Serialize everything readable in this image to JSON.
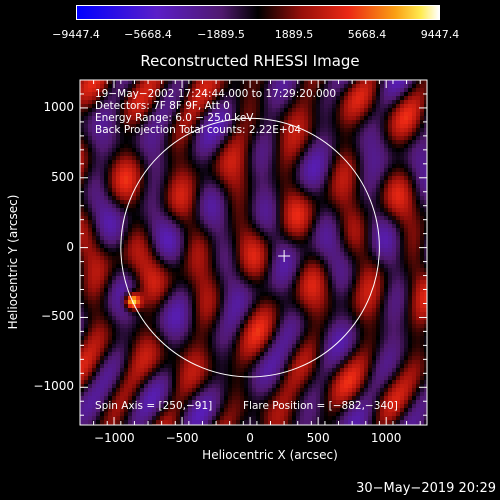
{
  "colorbar": {
    "ticks": [
      "−9447.4",
      "−5668.4",
      "−1889.5",
      "1889.5",
      "5668.4",
      "9447.4"
    ]
  },
  "chart_data": {
    "type": "heatmap",
    "title": "Reconstructed RHESSI Image",
    "xlabel": "Heliocentric X (arcsec)",
    "ylabel": "Heliocentric Y (arcsec)",
    "xlim": [
      -1250,
      1300
    ],
    "ylim": [
      -1270,
      1200
    ],
    "xticks": [
      {
        "value": -1000,
        "label": "−1000"
      },
      {
        "value": -500,
        "label": "−500"
      },
      {
        "value": 0,
        "label": "0"
      },
      {
        "value": 500,
        "label": "500"
      },
      {
        "value": 1000,
        "label": "1000"
      }
    ],
    "yticks": [
      {
        "value": 1000,
        "label": "1000"
      },
      {
        "value": 500,
        "label": "500"
      },
      {
        "value": 0,
        "label": "0"
      },
      {
        "value": -500,
        "label": "−500"
      },
      {
        "value": -1000,
        "label": "−1000"
      }
    ],
    "color_range": [
      -9447.4,
      9447.4
    ],
    "solar_limb": {
      "center": [
        0,
        0
      ],
      "radius": 950
    },
    "center_marker": [
      250,
      -60
    ],
    "hotspot": {
      "x": -880,
      "y": -370
    },
    "info_lines": [
      "19−May−2002 17:24:44.000 to 17:29:20.000",
      "Detectors: 7F 8F 9F, Att 0",
      "Energy Range: 6.0 − 25.0 keV",
      "Back Projection     Total counts: 2.22E+04"
    ],
    "spin_axis": "Spin Axis = [250,−91]",
    "flare_position": "Flare Position = [−882,−340]"
  },
  "footer": "30−May−2019 20:29",
  "colors": {
    "axes": "#ffffff",
    "background": "#000000"
  }
}
